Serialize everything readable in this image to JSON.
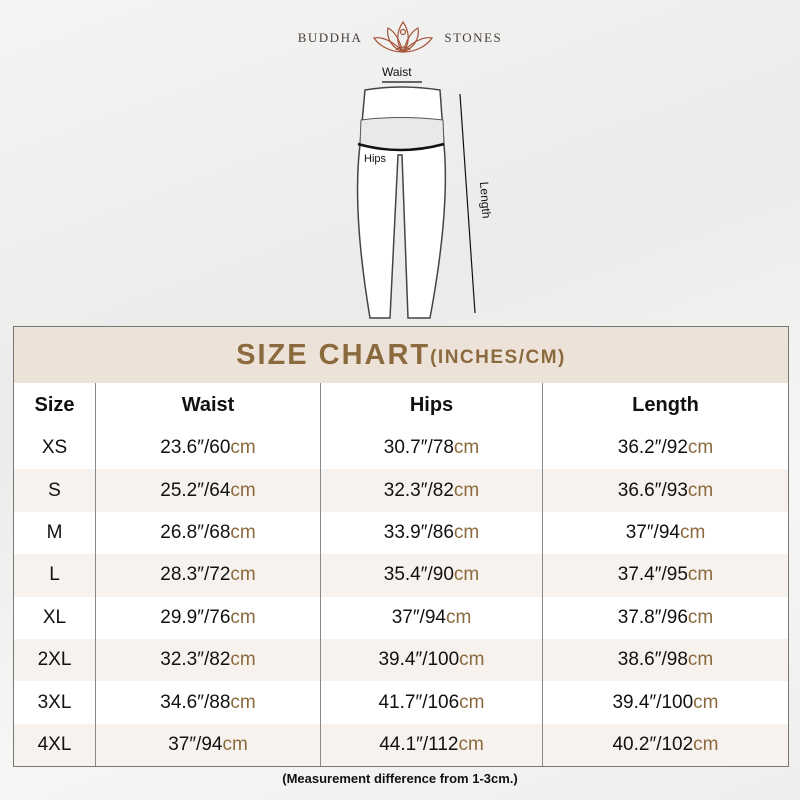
{
  "brand": {
    "left": "BUDDHA",
    "right": "STONES"
  },
  "diagram": {
    "waist": "Waist",
    "hips": "Hips",
    "length": "Length"
  },
  "table": {
    "title": "SIZE CHART",
    "units": "(INCHES/CM)",
    "headers": [
      "Size",
      "Waist",
      "Hips",
      "Length"
    ],
    "rows": [
      [
        "XS",
        "23.6″/60",
        "30.7″/78",
        "36.2″/92"
      ],
      [
        "S",
        "25.2″/64",
        "32.3″/82",
        "36.6″/93"
      ],
      [
        "M",
        "26.8″/68",
        "33.9″/86",
        "37″/94"
      ],
      [
        "L",
        "28.3″/72",
        "35.4″/90",
        "37.4″/95"
      ],
      [
        "XL",
        "29.9″/76",
        "37″/94",
        "37.8″/96"
      ],
      [
        "2XL",
        "32.3″/82",
        "39.4″/100",
        "38.6″/98"
      ],
      [
        "3XL",
        "34.6″/88",
        "41.7″/106",
        "39.4″/100"
      ],
      [
        "4XL",
        "37″/94",
        "44.1″/112",
        "40.2″/102"
      ]
    ],
    "cm_unit": "cm"
  },
  "footer": "(Measurement difference from 1-3cm.)",
  "colors": {
    "accent": "#8b6a3e",
    "header_bg": "#ede2d8",
    "alt_row": "#f7f2ed"
  }
}
